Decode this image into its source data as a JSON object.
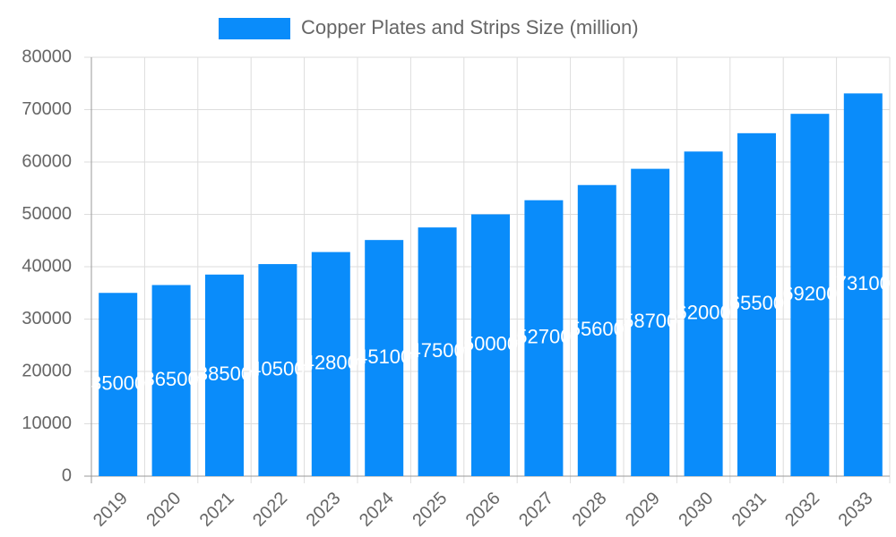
{
  "chart_data": {
    "type": "bar",
    "categories": [
      "2019",
      "2020",
      "2021",
      "2022",
      "2023",
      "2024",
      "2025",
      "2026",
      "2027",
      "2028",
      "2029",
      "2030",
      "2031",
      "2032",
      "2033"
    ],
    "series": [
      {
        "name": "Copper Plates and Strips Size (million)",
        "color": "#0a8cfa",
        "values": [
          35000,
          36500,
          38500,
          40500,
          42800,
          45100,
          47500,
          50000,
          52700,
          55600,
          58700,
          62000,
          65500,
          69200,
          73100
        ]
      }
    ],
    "ylim": [
      0,
      80000
    ],
    "yticks": [
      0,
      10000,
      20000,
      30000,
      40000,
      50000,
      60000,
      70000,
      80000
    ],
    "grid": true,
    "legend": "top",
    "data_labels": true
  }
}
